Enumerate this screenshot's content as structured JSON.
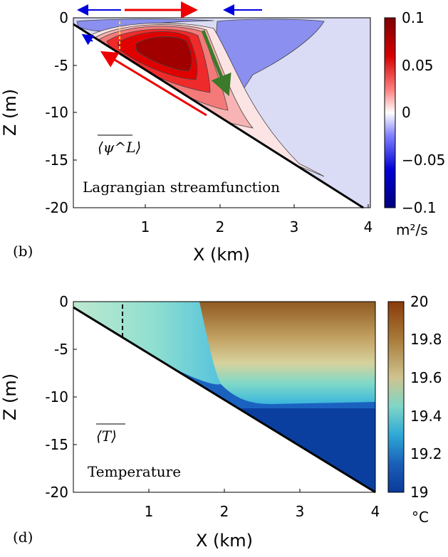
{
  "chart_data": [
    {
      "type": "heatmap",
      "panel_label": "(b)",
      "overlay_symbol": "⟨ψ^L⟩",
      "annotation": "Lagrangian streamfunction",
      "xlabel": "X (km)",
      "ylabel": "Z (m)",
      "xlim": [
        0,
        4
      ],
      "ylim": [
        -20,
        0
      ],
      "x_ticks": [
        1,
        2,
        3,
        4
      ],
      "y_ticks": [
        0,
        -5,
        -10,
        -15,
        -20
      ],
      "colorbar": {
        "range": [
          -0.1,
          0.1
        ],
        "ticks": [
          0.1,
          0.05,
          0,
          -0.05,
          -0.1
        ],
        "tick_labels": [
          "0.1",
          "0.05",
          "0",
          "−0.05",
          "−0.1"
        ],
        "unit": "m²/s",
        "colormap": "blue-white-red"
      },
      "bottom_slope": {
        "x": [
          0,
          3.9
        ],
        "z": [
          -0.5,
          -20
        ]
      },
      "features": {
        "positive_cell_peak": {
          "x": 1.4,
          "z": -3,
          "value": 0.09
        },
        "negative_cell": {
          "x": 2.6,
          "z": -4,
          "value": -0.03
        },
        "surface_negative_strip": {
          "x": 0.3,
          "z": -1,
          "value": -0.02
        }
      },
      "flow_arrows": [
        "leftward blue at surface",
        "rightward red at surface",
        "leftward blue at surface",
        "down-left red along slope",
        "down-left blue near shore",
        "downward green"
      ],
      "grid": false
    },
    {
      "type": "heatmap",
      "panel_label": "(d)",
      "overlay_symbol": "⟨T⟩",
      "annotation": "Temperature",
      "xlabel": "X (km)",
      "ylabel": "Z (m)",
      "xlim": [
        0,
        4
      ],
      "ylim": [
        -20,
        0
      ],
      "x_ticks": [
        1,
        2,
        3,
        4
      ],
      "y_ticks": [
        0,
        -5,
        -10,
        -15,
        -20
      ],
      "colorbar": {
        "range": [
          19,
          20
        ],
        "ticks": [
          20,
          19.8,
          19.6,
          19.4,
          19.2,
          19
        ],
        "tick_labels": [
          "20",
          "19.8",
          "19.6",
          "19.4",
          "19.2",
          "19"
        ],
        "unit": "°C",
        "colormap": "blue-teal-tan-brown"
      },
      "bottom_slope": {
        "x": [
          0,
          4
        ],
        "z": [
          -0.5,
          -20
        ]
      },
      "features": {
        "warm_surface_layer": {
          "x": [
            2.2,
            4
          ],
          "z": [
            0,
            -7
          ],
          "value": 19.85
        },
        "nearshore_water": {
          "x": [
            0,
            1.5
          ],
          "z": [
            0,
            -5
          ],
          "value": 19.45
        },
        "cold_bottom_water": {
          "x": [
            2,
            4
          ],
          "z": [
            -10,
            -20
          ],
          "value": 19.05
        }
      },
      "dashed_marker_x": 0.65,
      "grid": false
    }
  ]
}
